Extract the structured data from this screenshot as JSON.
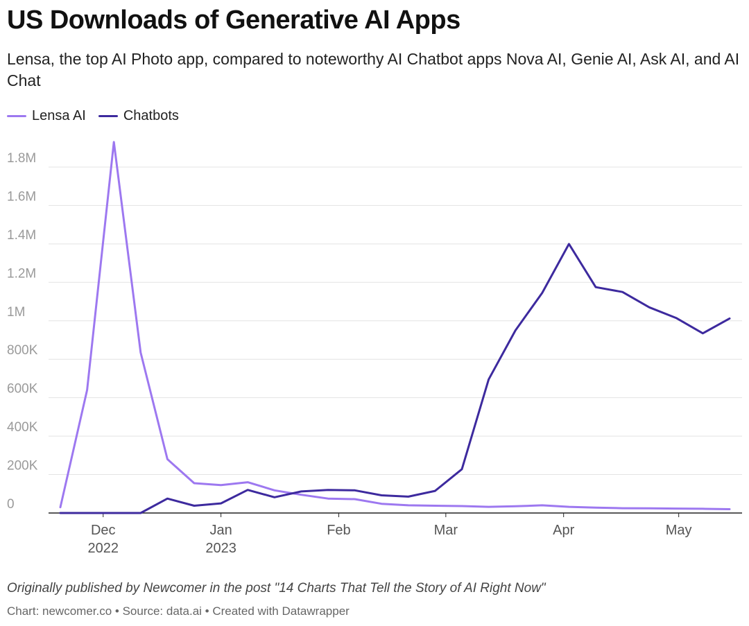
{
  "chart_data": {
    "type": "line",
    "title": "US Downloads of Generative AI Apps",
    "subtitle": "Lensa, the top AI Photo app, compared to noteworthy AI Chatbot apps Nova AI, Genie AI, Ask AI, and AI Chat",
    "xlabel": "",
    "ylabel": "",
    "ylim": [
      0,
      1900000
    ],
    "yticks": [
      {
        "value": 0,
        "label": "0"
      },
      {
        "value": 200000,
        "label": "200K"
      },
      {
        "value": 400000,
        "label": "400K"
      },
      {
        "value": 600000,
        "label": "600K"
      },
      {
        "value": 800000,
        "label": "800K"
      },
      {
        "value": 1000000,
        "label": "1M"
      },
      {
        "value": 1200000,
        "label": "1.2M"
      },
      {
        "value": 1400000,
        "label": "1.4M"
      },
      {
        "value": 1600000,
        "label": "1.6M"
      },
      {
        "value": 1800000,
        "label": "1.8M"
      }
    ],
    "xticks": [
      {
        "index": 1.6,
        "label": "Dec",
        "sublabel": "2022"
      },
      {
        "index": 6.0,
        "label": "Jan",
        "sublabel": "2023"
      },
      {
        "index": 10.4,
        "label": "Feb",
        "sublabel": ""
      },
      {
        "index": 14.4,
        "label": "Mar",
        "sublabel": ""
      },
      {
        "index": 18.8,
        "label": "Apr",
        "sublabel": ""
      },
      {
        "index": 23.1,
        "label": "May",
        "sublabel": ""
      }
    ],
    "x": [
      "W1",
      "W2",
      "W3",
      "W4",
      "W5",
      "W6",
      "W7",
      "W8",
      "W9",
      "W10",
      "W11",
      "W12",
      "W13",
      "W14",
      "W15",
      "W16",
      "W17",
      "W18",
      "W19",
      "W20",
      "W21",
      "W22",
      "W23",
      "W24",
      "W25",
      "W26"
    ],
    "series": [
      {
        "name": "Lensa AI",
        "color": "#9d78f0",
        "values": [
          30000,
          640000,
          1930000,
          835000,
          280000,
          155000,
          145000,
          160000,
          118000,
          95000,
          75000,
          72000,
          48000,
          40000,
          38000,
          36000,
          32000,
          35000,
          40000,
          32000,
          28000,
          25000,
          24000,
          23000,
          22000,
          20000
        ]
      },
      {
        "name": "Chatbots",
        "color": "#3d2a9e",
        "values": [
          0,
          0,
          0,
          0,
          75000,
          38000,
          50000,
          120000,
          82000,
          112000,
          120000,
          118000,
          92000,
          85000,
          115000,
          228000,
          695000,
          950000,
          1145000,
          1400000,
          1175000,
          1150000,
          1070000,
          1015000,
          935000,
          1012000
        ]
      }
    ],
    "legend_position": "top-left",
    "grid": true
  },
  "footer": {
    "note": "Originally published by Newcomer in the post \"14 Charts That Tell the Story of AI Right Now\"",
    "credit": "Chart: newcomer.co • Source: data.ai • Created with Datawrapper"
  }
}
